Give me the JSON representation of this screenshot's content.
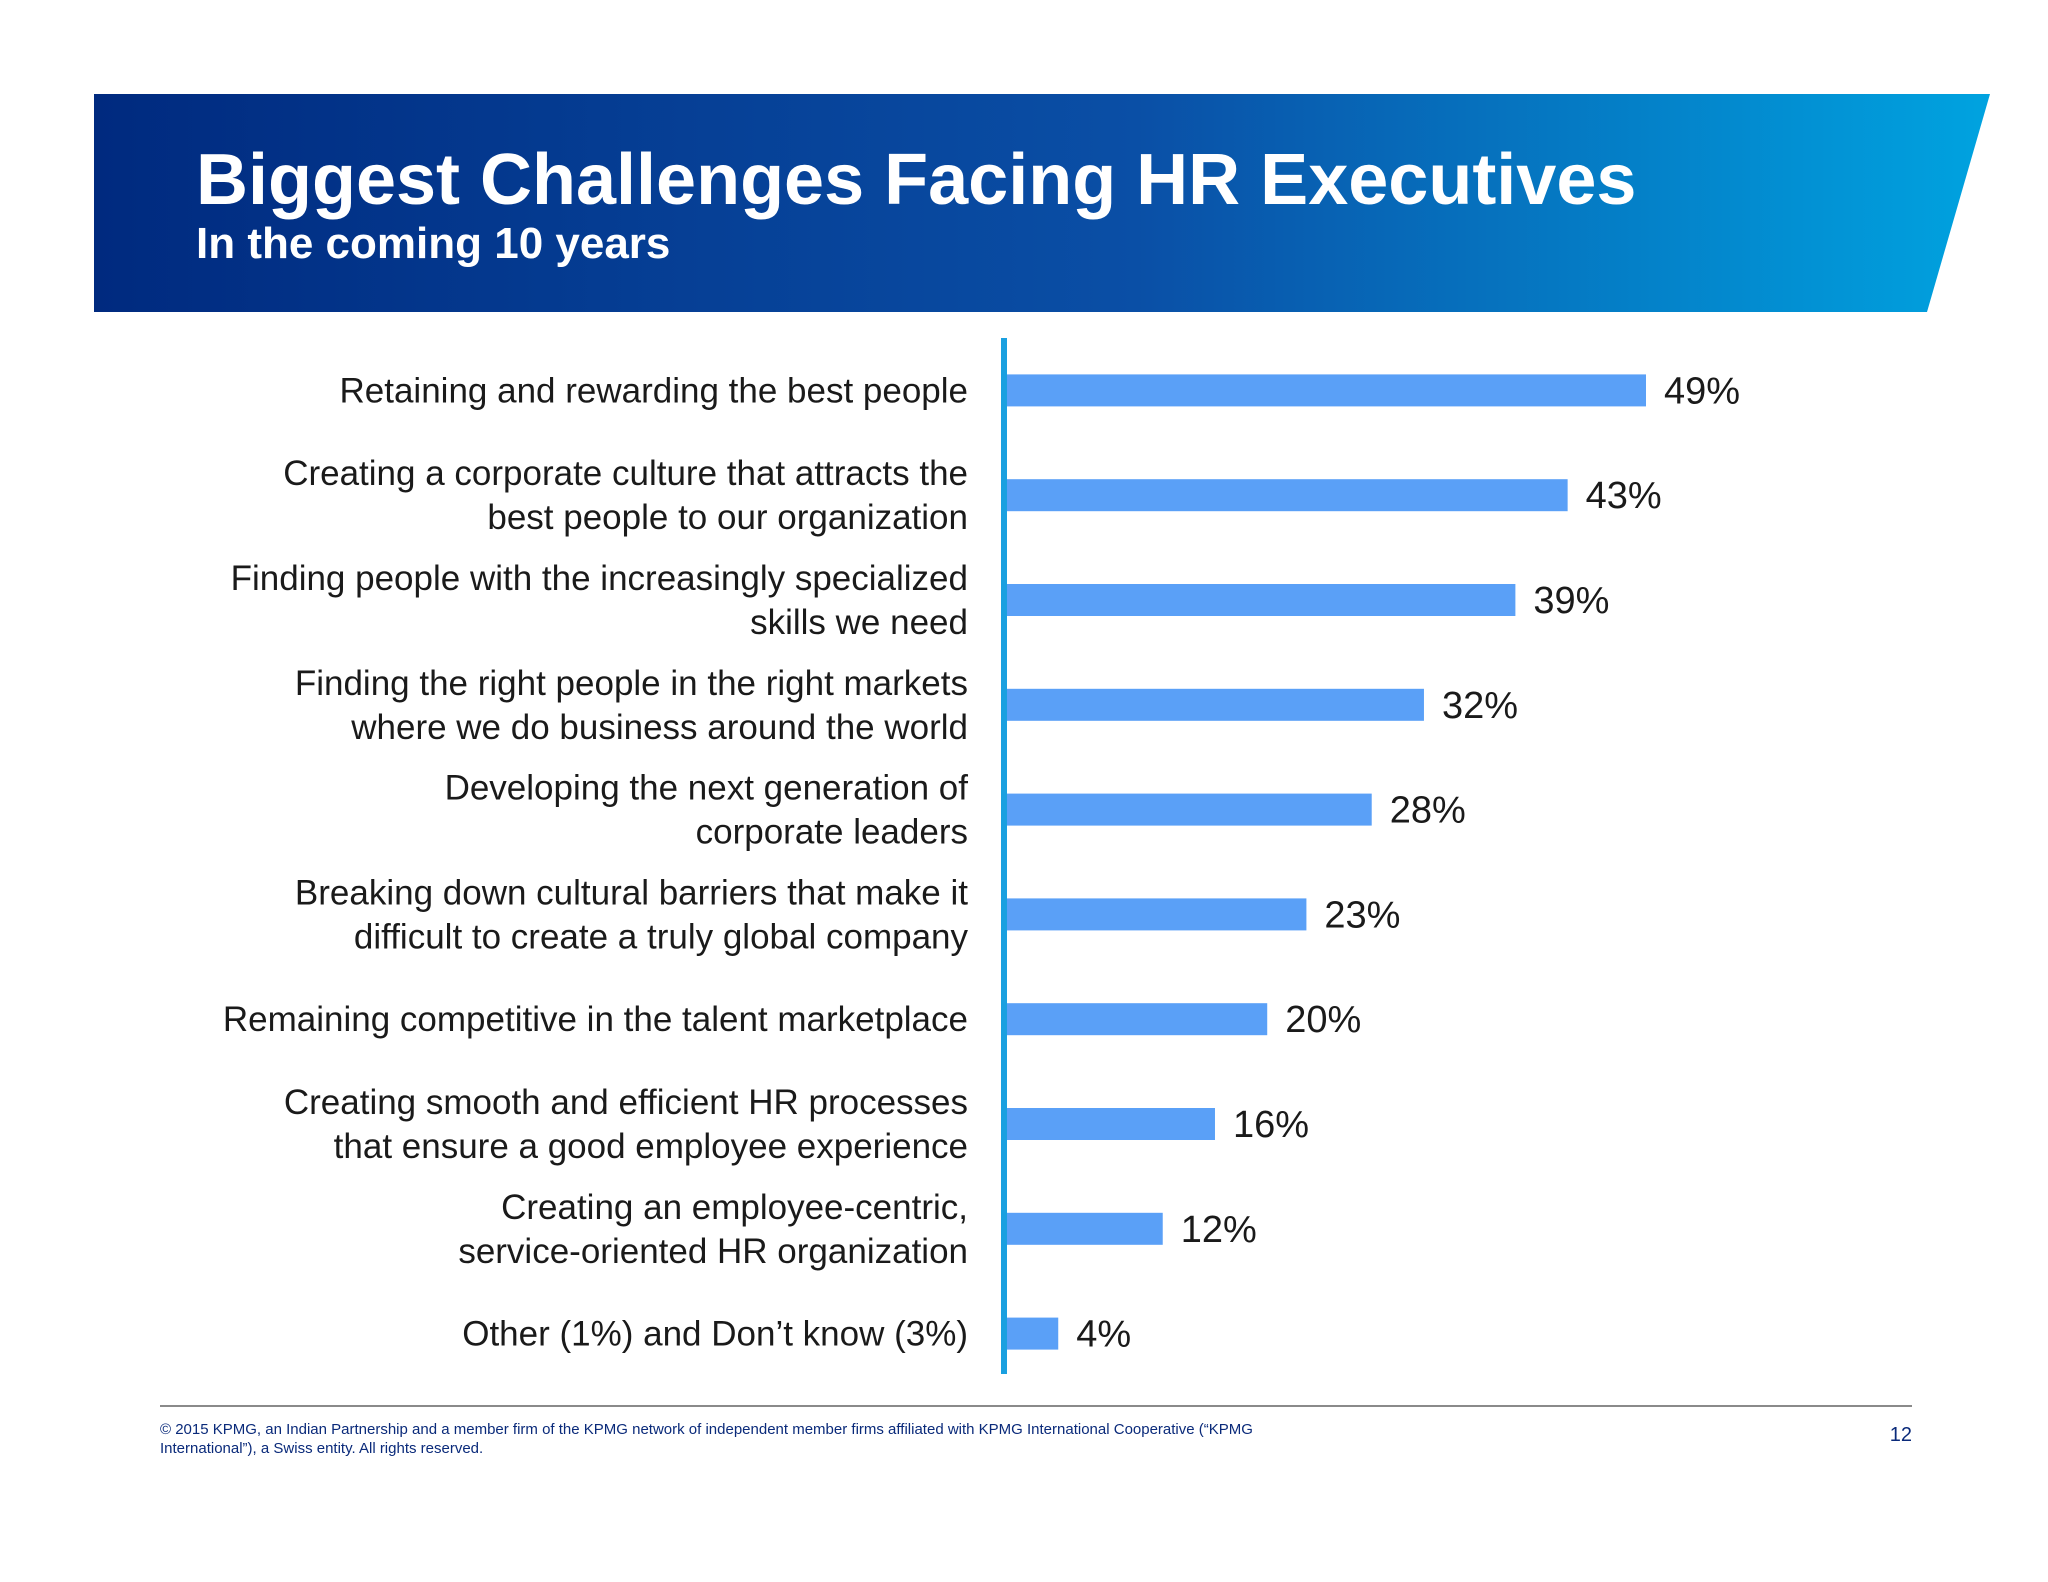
{
  "slide": {
    "title": "Biggest Challenges Facing HR Executives",
    "subtitle": "In the coming 10 years",
    "banner_colors": {
      "start": "#002a7f",
      "mid": "#0a4fa6",
      "end": "#00a3e0"
    },
    "bar_color": "#5aa0f7",
    "axis_color": "#1aa0e0"
  },
  "chart_data": {
    "type": "bar",
    "orientation": "horizontal",
    "title": "Biggest Challenges Facing HR Executives",
    "subtitle": "In the coming 10 years",
    "xlabel": "",
    "ylabel": "",
    "xlim": [
      0,
      49
    ],
    "grid": false,
    "legend": "none",
    "value_suffix": "%",
    "categories": [
      [
        "Retaining and rewarding the best people"
      ],
      [
        "Creating a corporate culture that attracts the",
        "best people to our organization"
      ],
      [
        "Finding people with the increasingly specialized",
        "skills we need"
      ],
      [
        "Finding the right people in the right markets",
        "where we do business around the world"
      ],
      [
        "Developing the next generation of",
        "corporate leaders"
      ],
      [
        "Breaking down cultural barriers that make it",
        "difficult to create a truly global company"
      ],
      [
        "Remaining competitive in the talent marketplace"
      ],
      [
        "Creating smooth and efficient HR processes",
        "that ensure a good employee experience"
      ],
      [
        "Creating an employee-centric,",
        "service-oriented HR organization"
      ],
      [
        "Other (1%) and Don’t know (3%)"
      ]
    ],
    "values": [
      49,
      43,
      39,
      32,
      28,
      23,
      20,
      16,
      12,
      4
    ],
    "data_labels": [
      "49%",
      "43%",
      "39%",
      "32%",
      "28%",
      "23%",
      "20%",
      "16%",
      "12%",
      "4%"
    ]
  },
  "footer": {
    "copyright": "© 2015 KPMG, an Indian Partnership and a member firm of the KPMG network of independent member firms affiliated with KPMG International Cooperative (“KPMG International”), a Swiss entity. All rights reserved.",
    "page_number": "12"
  }
}
